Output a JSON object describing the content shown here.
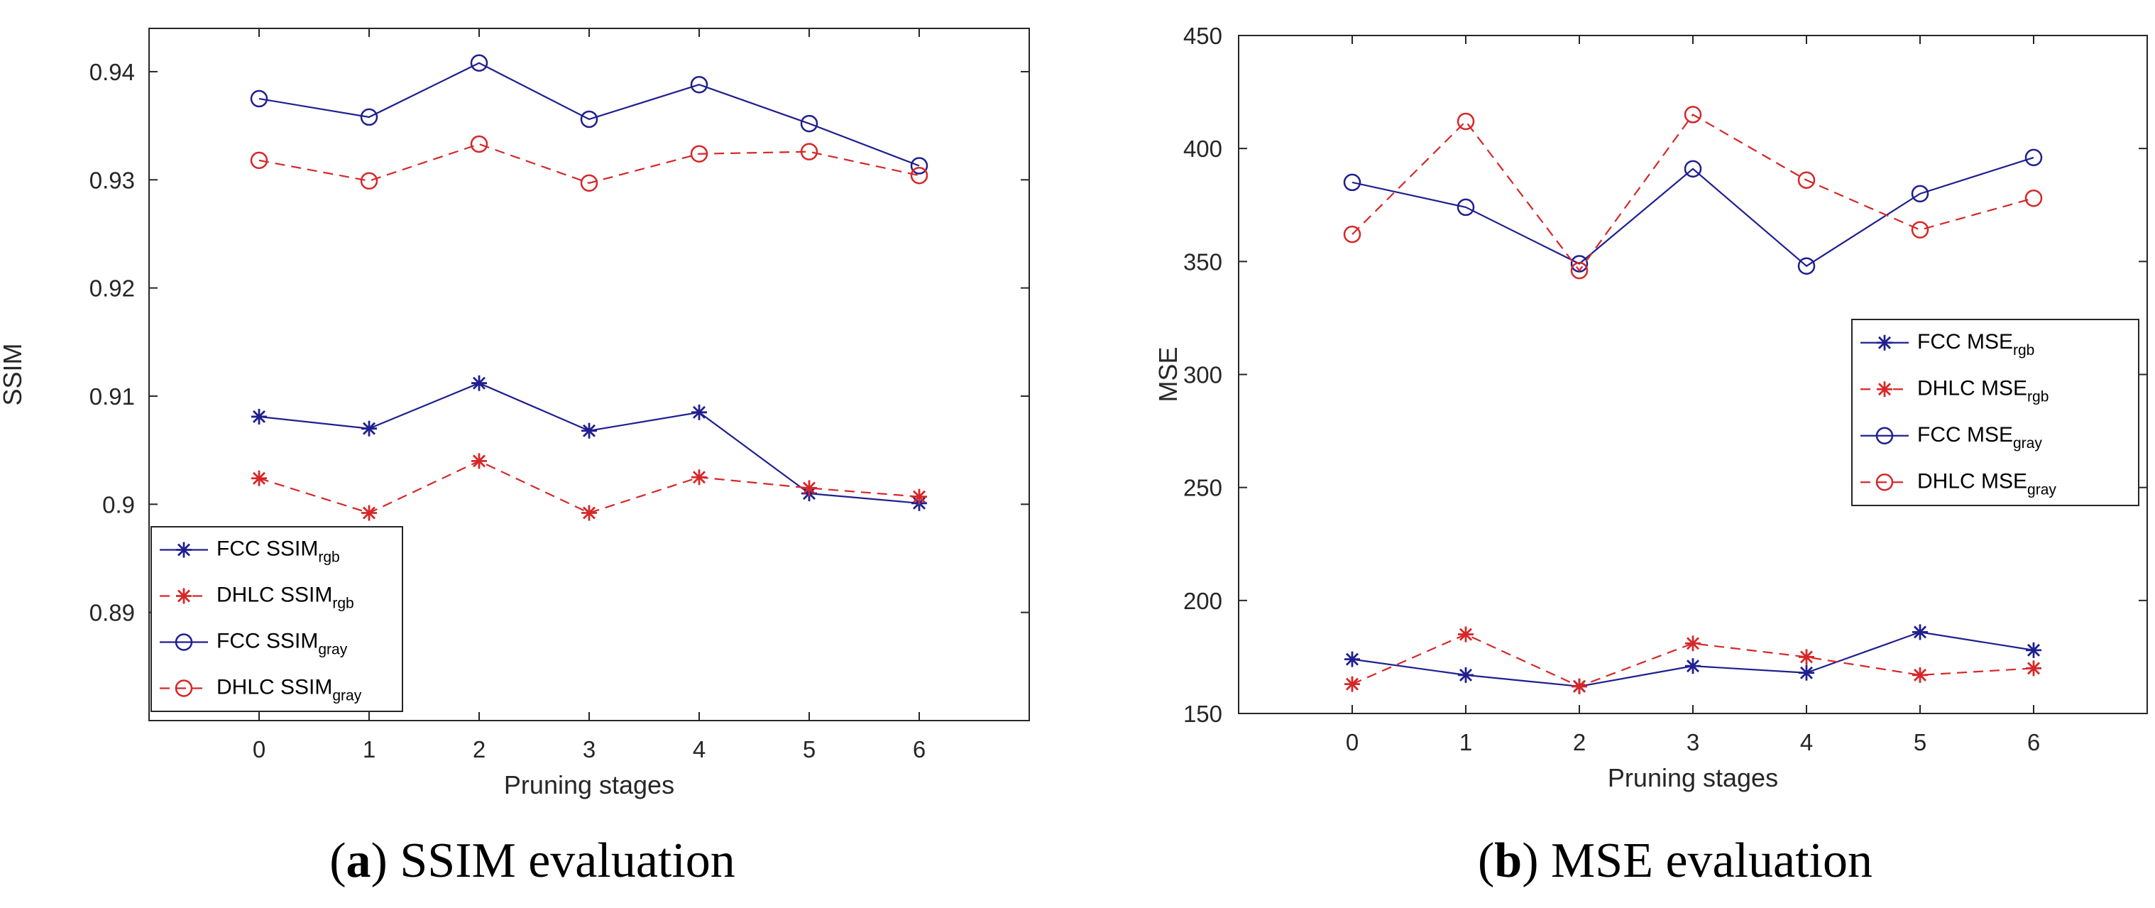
{
  "colors": {
    "fcc": "#1f1f8f",
    "dhlc": "#d62728",
    "axis": "#262626"
  },
  "chart_data": [
    {
      "type": "line",
      "caption_letter": "a",
      "caption_text": "SSIM evaluation",
      "xlabel": "Pruning stages",
      "ylabel": "SSIM",
      "x": [
        0,
        1,
        2,
        3,
        4,
        5,
        6
      ],
      "xlim": [
        -1,
        7
      ],
      "ylim": [
        0.88,
        0.944
      ],
      "yticks": [
        0.89,
        0.9,
        0.91,
        0.92,
        0.93,
        0.94
      ],
      "ytick_labels": [
        "0.89",
        "0.9",
        "0.91",
        "0.92",
        "0.93",
        "0.94"
      ],
      "legend_position": "lower-left",
      "series": [
        {
          "name": "FCC SSIM",
          "label_main": "FCC SSIM",
          "label_sub": "rgb",
          "color": "#1f1f8f",
          "dash": "solid",
          "marker": "star",
          "values": [
            0.9081,
            0.907,
            0.9112,
            0.9068,
            0.9085,
            0.901,
            0.9001
          ]
        },
        {
          "name": "DHLC SSIM",
          "label_main": "DHLC SSIM",
          "label_sub": "rgb",
          "color": "#d62728",
          "dash": "dashed",
          "marker": "star",
          "values": [
            0.9024,
            0.8992,
            0.904,
            0.8992,
            0.9025,
            0.9015,
            0.9007
          ]
        },
        {
          "name": "FCC SSIM",
          "label_main": "FCC SSIM",
          "label_sub": "gray",
          "color": "#1f1f8f",
          "dash": "solid",
          "marker": "circle",
          "values": [
            0.9375,
            0.9358,
            0.9408,
            0.9356,
            0.9388,
            0.9352,
            0.9313
          ]
        },
        {
          "name": "DHLC SSIM",
          "label_main": "DHLC SSIM",
          "label_sub": "gray",
          "color": "#d62728",
          "dash": "dashed",
          "marker": "circle",
          "values": [
            0.9318,
            0.9299,
            0.9333,
            0.9297,
            0.9324,
            0.9326,
            0.9304
          ]
        }
      ]
    },
    {
      "type": "line",
      "caption_letter": "b",
      "caption_text": "MSE evaluation",
      "xlabel": "Pruning stages",
      "ylabel": "MSE",
      "x": [
        0,
        1,
        2,
        3,
        4,
        5,
        6
      ],
      "xlim": [
        -1,
        7
      ],
      "ylim": [
        150,
        450
      ],
      "yticks": [
        150,
        200,
        250,
        300,
        350,
        400,
        450
      ],
      "ytick_labels": [
        "150",
        "200",
        "250",
        "300",
        "350",
        "400",
        "450"
      ],
      "legend_position": "right",
      "series": [
        {
          "name": "FCC MSE",
          "label_main": "FCC MSE",
          "label_sub": "rgb",
          "color": "#1f1f8f",
          "dash": "solid",
          "marker": "star",
          "values": [
            174,
            167,
            162,
            171,
            168,
            186,
            178
          ]
        },
        {
          "name": "DHLC MSE",
          "label_main": "DHLC MSE",
          "label_sub": "rgb",
          "color": "#d62728",
          "dash": "dashed",
          "marker": "star",
          "values": [
            163,
            185,
            162,
            181,
            175,
            167,
            170
          ]
        },
        {
          "name": "FCC MSE",
          "label_main": "FCC MSE",
          "label_sub": "gray",
          "color": "#1f1f8f",
          "dash": "solid",
          "marker": "circle",
          "values": [
            385,
            374,
            349,
            391,
            348,
            380,
            396
          ]
        },
        {
          "name": "DHLC MSE",
          "label_main": "DHLC MSE",
          "label_sub": "gray",
          "color": "#d62728",
          "dash": "dashed",
          "marker": "circle",
          "values": [
            362,
            412,
            346,
            415,
            386,
            364,
            378
          ]
        }
      ]
    }
  ]
}
